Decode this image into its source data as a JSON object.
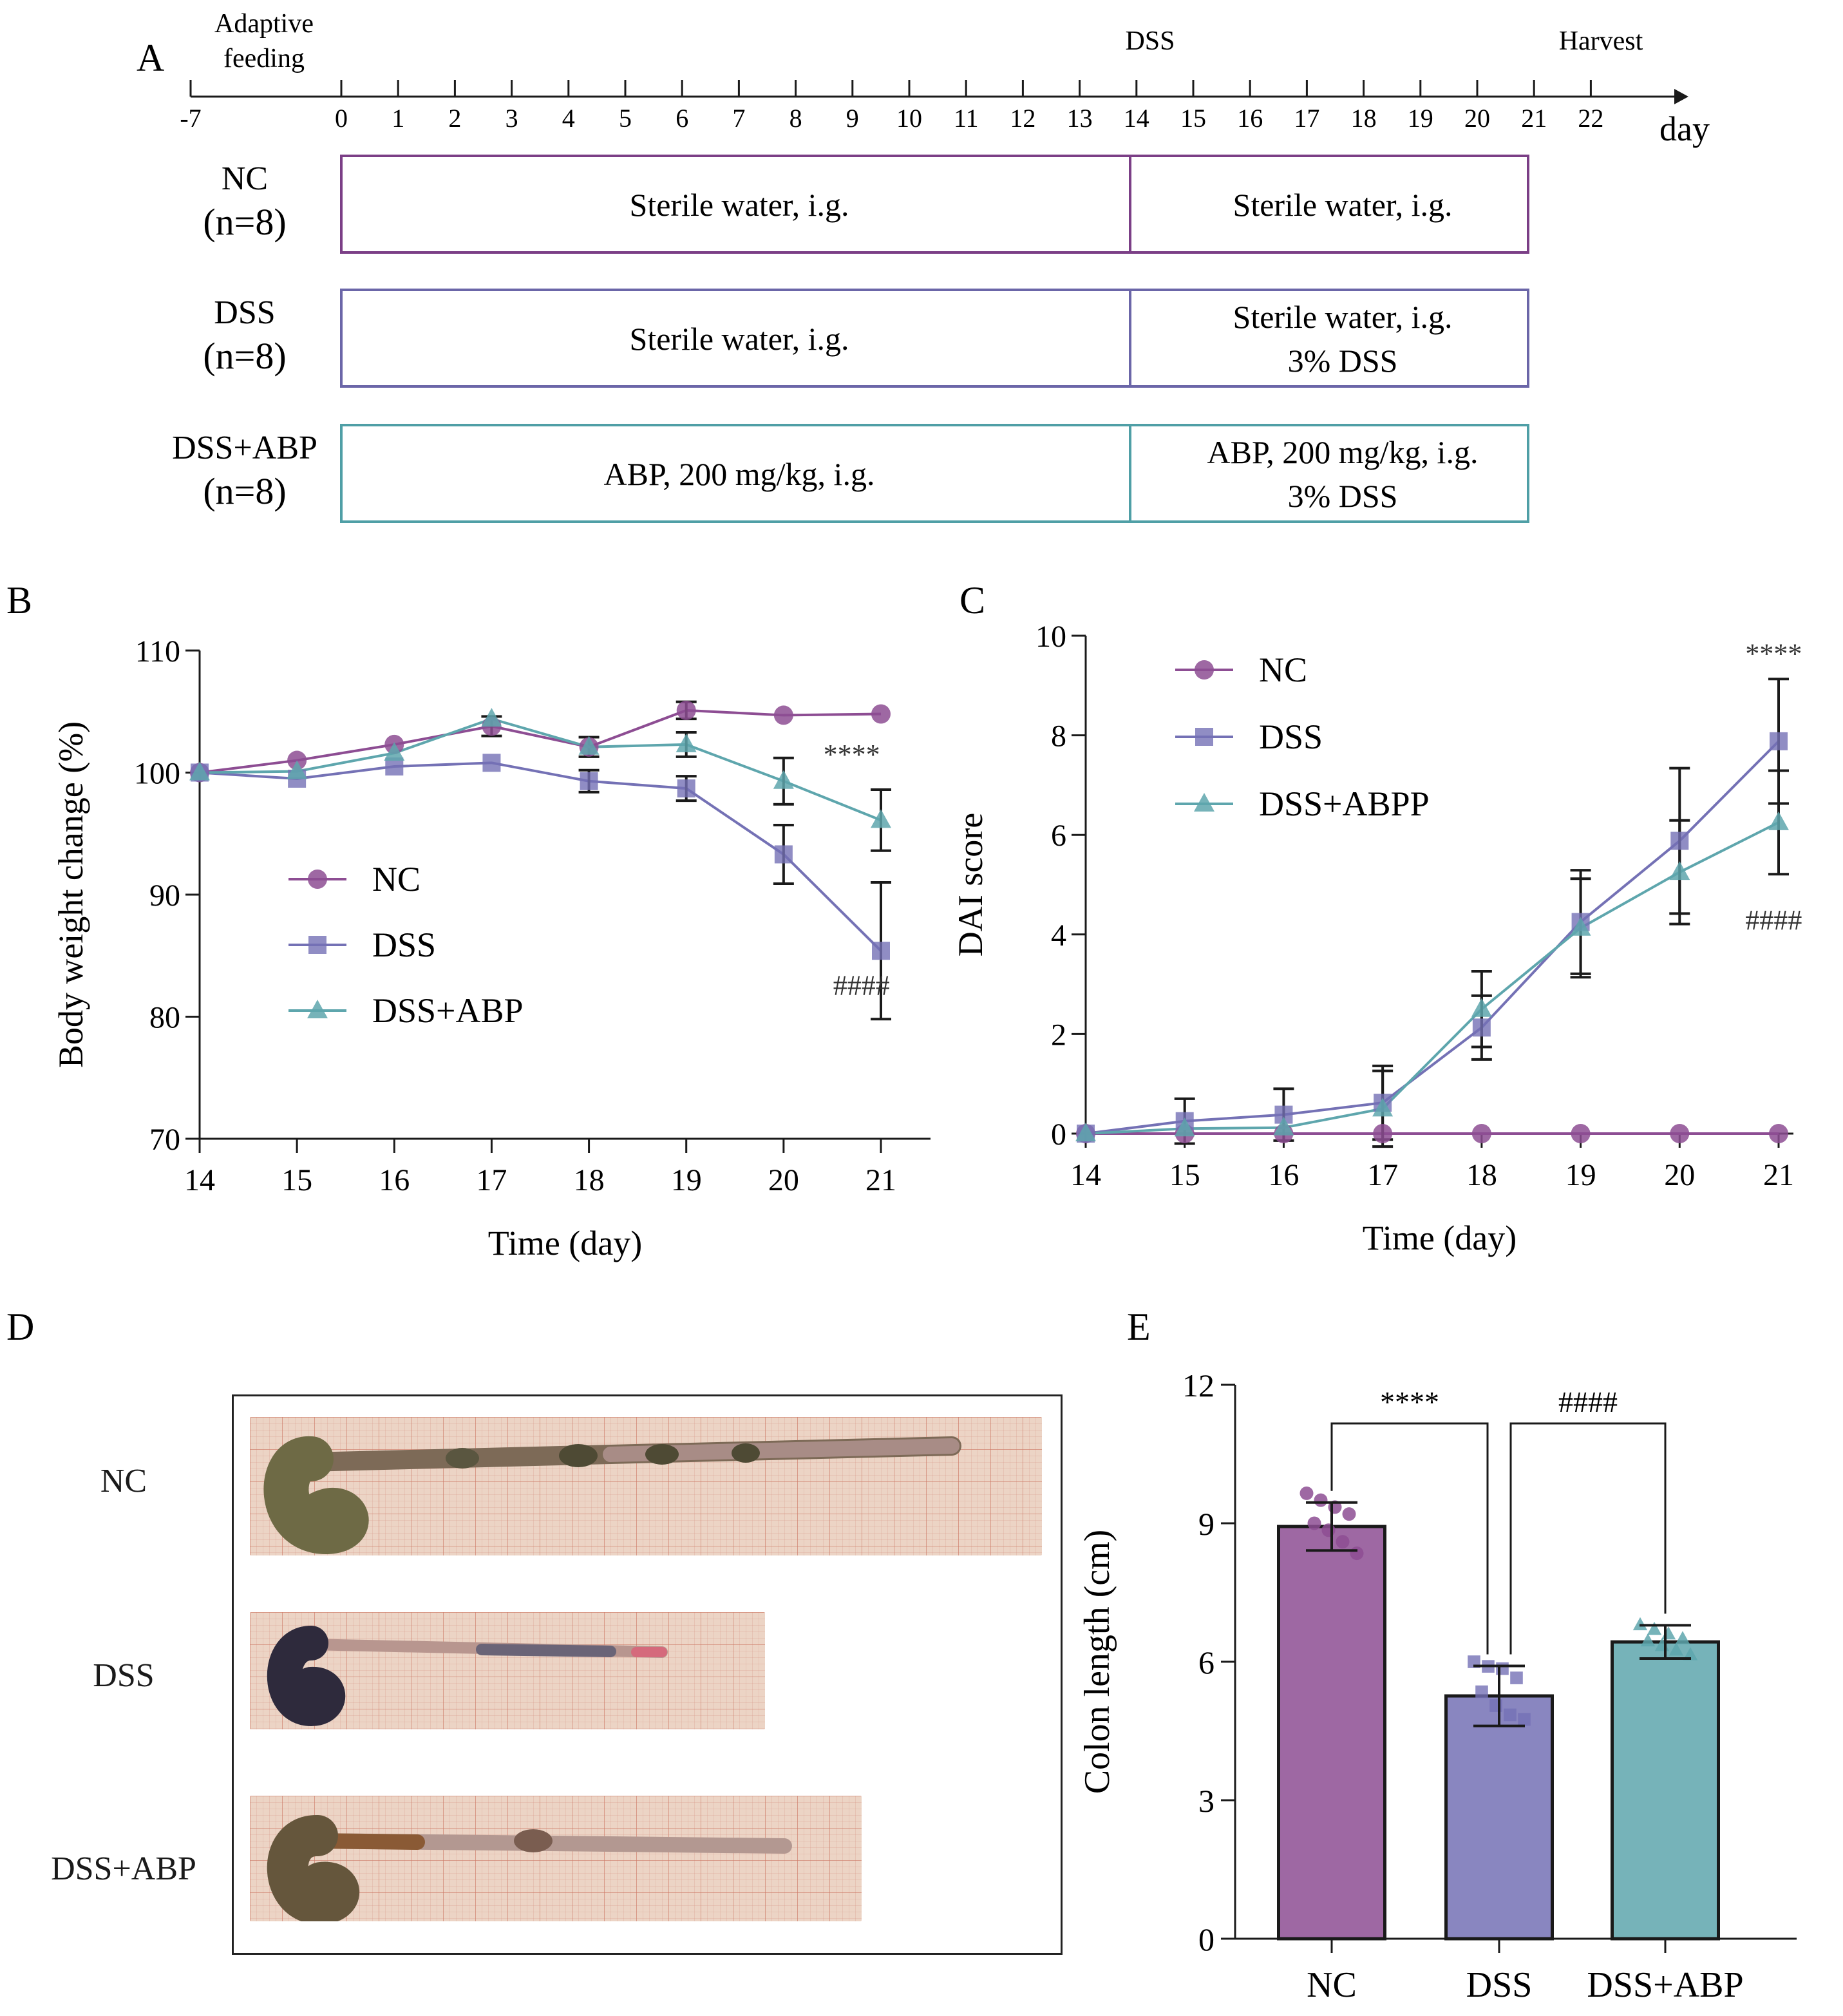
{
  "panels": {
    "A": {
      "letter": "A",
      "timeline": {
        "pre_label_line1": "Adaptive",
        "pre_label_line2": "feeding",
        "dss_label": "DSS",
        "harvest_label": "Harvest",
        "unit": "day",
        "ticks": [
          "-7",
          "0",
          "1",
          "2",
          "3",
          "4",
          "5",
          "6",
          "7",
          "8",
          "9",
          "10",
          "11",
          "12",
          "13",
          "14",
          "15",
          "16",
          "17",
          "18",
          "19",
          "20",
          "21",
          "22"
        ]
      },
      "groups": [
        {
          "name": "NC",
          "n": "(n=8)",
          "phase1": [
            "Sterile water, i.g."
          ],
          "phase2": [
            "Sterile water, i.g."
          ],
          "color": "#7b3f86"
        },
        {
          "name": "DSS",
          "n": "(n=8)",
          "phase1": [
            "Sterile water, i.g."
          ],
          "phase2": [
            "Sterile water, i.g.",
            "3% DSS"
          ],
          "color": "#6b66a8"
        },
        {
          "name": "DSS+ABP",
          "n": "(n=8)",
          "phase1": [
            "ABP, 200 mg/kg, i.g."
          ],
          "phase2": [
            "ABP, 200 mg/kg, i.g.",
            "3% DSS"
          ],
          "color": "#4f9fa6"
        }
      ]
    },
    "D": {
      "letter": "D",
      "rows": [
        "NC",
        "DSS",
        "DSS+ABP"
      ]
    }
  },
  "colors": {
    "NC": "#8d4d93",
    "DSS": "#7471b5",
    "DSS_ABP": "#5ea6ad",
    "axis": "#1a1a1a"
  },
  "chart_data": [
    {
      "panel": "B",
      "type": "line",
      "x": [
        14,
        15,
        16,
        17,
        18,
        19,
        20,
        21
      ],
      "xlabel": "Time (day)",
      "ylabel": "Body weight change (%)",
      "ylim": [
        70,
        110
      ],
      "yticks": [
        70,
        80,
        90,
        100,
        110
      ],
      "legend_position": "center-left",
      "series": [
        {
          "name": "NC",
          "marker": "circle",
          "values": [
            100,
            101.0,
            102.3,
            103.8,
            102.1,
            105.1,
            104.7,
            104.8
          ],
          "errors": [
            0,
            0,
            0,
            0.8,
            0.8,
            0.7,
            0,
            0
          ]
        },
        {
          "name": "DSS",
          "marker": "square",
          "values": [
            100,
            99.5,
            100.5,
            100.8,
            99.3,
            98.7,
            93.3,
            85.4
          ],
          "errors": [
            0,
            0,
            0,
            0,
            0.9,
            1.0,
            2.4,
            5.6
          ]
        },
        {
          "name": "DSS+ABP",
          "marker": "triangle",
          "values": [
            100,
            100.1,
            101.6,
            104.4,
            102.1,
            102.3,
            99.3,
            96.1
          ],
          "errors": [
            0,
            0,
            0,
            0,
            0,
            1.0,
            1.9,
            2.5
          ]
        }
      ],
      "annotations": [
        {
          "text": "****",
          "x": 20.7,
          "y": 100.7
        },
        {
          "text": "####",
          "x": 20.8,
          "y": 81.8
        }
      ]
    },
    {
      "panel": "C",
      "type": "line",
      "x": [
        14,
        15,
        16,
        17,
        18,
        19,
        20,
        21
      ],
      "xlabel": "Time (day)",
      "ylabel": "DAI score",
      "ylim": [
        0,
        10
      ],
      "yticks": [
        0,
        2,
        4,
        6,
        8,
        10
      ],
      "legend_position": "top-left",
      "series": [
        {
          "name": "NC",
          "marker": "circle",
          "values": [
            0,
            0,
            0,
            0,
            0,
            0,
            0,
            0
          ],
          "errors": [
            0,
            0,
            0,
            0,
            0,
            0,
            0,
            0
          ]
        },
        {
          "name": "DSS",
          "marker": "square",
          "values": [
            0,
            0.25,
            0.38,
            0.62,
            2.13,
            4.25,
            5.88,
            7.88
          ],
          "errors": [
            0,
            0.45,
            0.52,
            0.74,
            0.64,
            1.04,
            1.46,
            1.25
          ]
        },
        {
          "name": "DSS+ABPP",
          "marker": "triangle",
          "values": [
            0,
            0.1,
            0.12,
            0.5,
            2.5,
            4.13,
            5.25,
            6.25
          ],
          "errors": [
            0,
            0,
            0,
            0.76,
            0.76,
            0.99,
            1.04,
            1.04
          ]
        }
      ],
      "annotations": [
        {
          "text": "****",
          "x": 20.95,
          "y": 9.45
        },
        {
          "text": "####",
          "x": 20.95,
          "y": 4.1
        }
      ]
    },
    {
      "panel": "E",
      "type": "bar",
      "categories": [
        "NC",
        "DSS",
        "DSS+ABP"
      ],
      "values": [
        8.93,
        5.26,
        6.43
      ],
      "errors": [
        0.52,
        0.65,
        0.36
      ],
      "points": [
        [
          9.65,
          9.5,
          9.35,
          9.2,
          9.0,
          8.85,
          8.6,
          8.35
        ],
        [
          6.0,
          5.9,
          5.85,
          5.65,
          5.35,
          5.05,
          4.85,
          4.75
        ],
        [
          6.8,
          6.7,
          6.6,
          6.5,
          6.45,
          6.35,
          6.25,
          6.15
        ]
      ],
      "ylabel": "Colon length (cm)",
      "ylim": [
        0,
        12
      ],
      "yticks": [
        0,
        3,
        6,
        9,
        12
      ],
      "comparisons": [
        {
          "from": 0,
          "to": 1,
          "text": "****"
        },
        {
          "from": 1,
          "to": 2,
          "text": "####"
        }
      ]
    }
  ]
}
